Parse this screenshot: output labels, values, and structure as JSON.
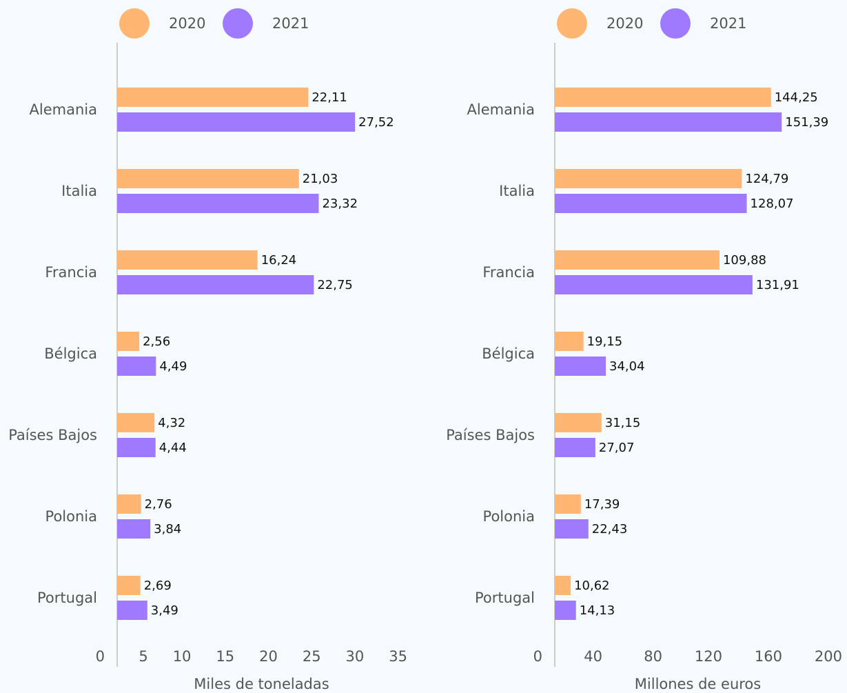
{
  "chart_data": [
    {
      "type": "bar",
      "orientation": "horizontal",
      "categories": [
        "Alemania",
        "Italia",
        "Francia",
        "Bélgica",
        "Países Bajos",
        "Polonia",
        "Portugal"
      ],
      "series": [
        {
          "name": "2020",
          "color": "#ffb673",
          "values": [
            22.11,
            21.03,
            16.24,
            2.56,
            4.32,
            2.76,
            2.69
          ],
          "value_labels": [
            "22,11",
            "21,03",
            "16,24",
            "2,56",
            "4,32",
            "2,76",
            "2,69"
          ]
        },
        {
          "name": "2021",
          "color": "#9f7aff",
          "values": [
            27.52,
            23.32,
            22.75,
            4.49,
            4.44,
            3.84,
            3.49
          ],
          "value_labels": [
            "27,52",
            "23,32",
            "22,75",
            "4,49",
            "4,44",
            "3,84",
            "3,49"
          ]
        }
      ],
      "xlim": [
        0,
        35
      ],
      "xticks": [
        0,
        5,
        10,
        15,
        20,
        25,
        30,
        35
      ],
      "xlabel": "Miles de toneladas",
      "legend": "top"
    },
    {
      "type": "bar",
      "orientation": "horizontal",
      "categories": [
        "Alemania",
        "Italia",
        "Francia",
        "Bélgica",
        "Países Bajos",
        "Polonia",
        "Portugal"
      ],
      "series": [
        {
          "name": "2020",
          "color": "#ffb673",
          "values": [
            144.25,
            124.79,
            109.88,
            19.15,
            31.15,
            17.39,
            10.62
          ],
          "value_labels": [
            "144,25",
            "124,79",
            "109,88",
            "19,15",
            "31,15",
            "17,39",
            "10,62"
          ]
        },
        {
          "name": "2021",
          "color": "#9f7aff",
          "values": [
            151.39,
            128.07,
            131.91,
            34.04,
            27.07,
            22.43,
            14.13
          ],
          "value_labels": [
            "151,39",
            "128,07",
            "131,91",
            "34,04",
            "27,07",
            "22,43",
            "14,13"
          ]
        }
      ],
      "xlim": [
        0,
        200
      ],
      "xticks": [
        0,
        40,
        80,
        120,
        160,
        200
      ],
      "xlabel": "Millones de euros",
      "legend": "top"
    }
  ]
}
